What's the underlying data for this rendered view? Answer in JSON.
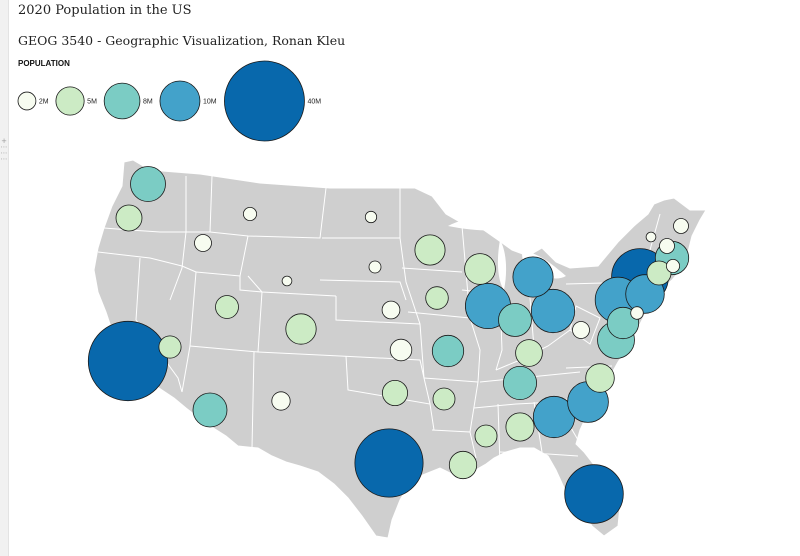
{
  "title": "2020 Population in the US",
  "subtitle": "GEOG 3540 - Geographic Visualization, Ronan Kleu",
  "legend": {
    "title": "POPULATION",
    "items": [
      {
        "label": "2M",
        "value": 2,
        "color": "#f7fcf0"
      },
      {
        "label": "5M",
        "value": 5,
        "color": "#ccebc5"
      },
      {
        "label": "8M",
        "value": 8,
        "color": "#7bccc4"
      },
      {
        "label": "10M",
        "value": 10,
        "color": "#43a2ca"
      },
      {
        "label": "40M",
        "value": 40,
        "color": "#0868ac"
      }
    ]
  },
  "colors": {
    "land": "#cfcfcf",
    "borders": "#ffffff",
    "bubble_stroke": "#1a1a1a",
    "tiny": "#f7fcf0",
    "small": "#ccebc5",
    "medium": "#7bccc4",
    "large": "#43a2ca",
    "xlarge": "#0868ac"
  },
  "states": [
    {
      "id": "WA",
      "population_m": 7.7
    },
    {
      "id": "OR",
      "population_m": 4.2
    },
    {
      "id": "CA",
      "population_m": 39.5
    },
    {
      "id": "NV",
      "population_m": 3.1
    },
    {
      "id": "ID",
      "population_m": 1.8
    },
    {
      "id": "MT",
      "population_m": 1.1
    },
    {
      "id": "WY",
      "population_m": 0.6
    },
    {
      "id": "UT",
      "population_m": 3.3
    },
    {
      "id": "CO",
      "population_m": 5.8
    },
    {
      "id": "AZ",
      "population_m": 7.2
    },
    {
      "id": "NM",
      "population_m": 2.1
    },
    {
      "id": "ND",
      "population_m": 0.8
    },
    {
      "id": "SD",
      "population_m": 0.9
    },
    {
      "id": "NE",
      "population_m": 2.0
    },
    {
      "id": "KS",
      "population_m": 2.9
    },
    {
      "id": "OK",
      "population_m": 4.0
    },
    {
      "id": "TX",
      "population_m": 29.1
    },
    {
      "id": "MN",
      "population_m": 5.7
    },
    {
      "id": "IA",
      "population_m": 3.2
    },
    {
      "id": "MO",
      "population_m": 6.2
    },
    {
      "id": "AR",
      "population_m": 3.0
    },
    {
      "id": "LA",
      "population_m": 4.7
    },
    {
      "id": "WI",
      "population_m": 5.9
    },
    {
      "id": "IL",
      "population_m": 12.8
    },
    {
      "id": "MI",
      "population_m": 10.1
    },
    {
      "id": "IN",
      "population_m": 6.8
    },
    {
      "id": "OH",
      "population_m": 11.8
    },
    {
      "id": "KY",
      "population_m": 4.5
    },
    {
      "id": "TN",
      "population_m": 6.9
    },
    {
      "id": "MS",
      "population_m": 3.0
    },
    {
      "id": "AL",
      "population_m": 5.0
    },
    {
      "id": "GA",
      "population_m": 10.7
    },
    {
      "id": "FL",
      "population_m": 21.5
    },
    {
      "id": "SC",
      "population_m": 5.1
    },
    {
      "id": "NC",
      "population_m": 10.4
    },
    {
      "id": "VA",
      "population_m": 8.6
    },
    {
      "id": "WV",
      "population_m": 1.8
    },
    {
      "id": "PA",
      "population_m": 13.0
    },
    {
      "id": "NY",
      "population_m": 20.2
    },
    {
      "id": "NJ",
      "population_m": 9.3
    },
    {
      "id": "DE",
      "population_m": 1.0
    },
    {
      "id": "MD",
      "population_m": 6.2
    },
    {
      "id": "MA",
      "population_m": 7.0
    },
    {
      "id": "CT",
      "population_m": 3.6
    },
    {
      "id": "RI",
      "population_m": 1.1
    },
    {
      "id": "VT",
      "population_m": 0.6
    },
    {
      "id": "NH",
      "population_m": 1.4
    },
    {
      "id": "ME",
      "population_m": 1.4
    }
  ]
}
